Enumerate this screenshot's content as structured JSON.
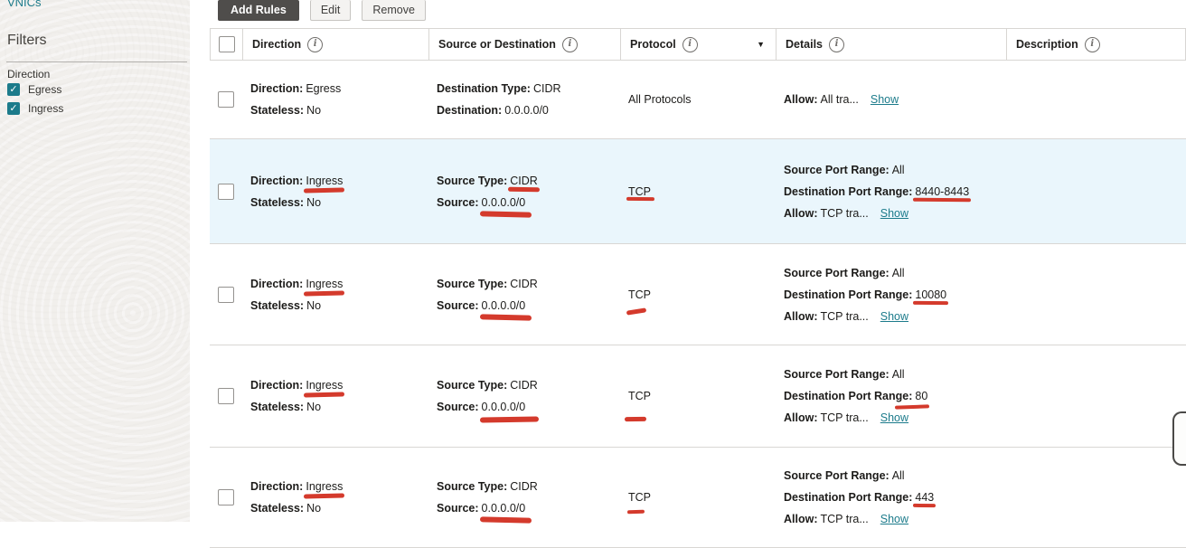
{
  "icons": {
    "info": "i",
    "caret_down": "▼",
    "check": "✓"
  },
  "colors": {
    "accent_teal": "#1c7b8b",
    "annotation_red": "#d43a2c",
    "row_highlight": "#eaf6fc",
    "add_rules_button": "#4f4d4b"
  },
  "sidebar": {
    "nav_item": "VNICs",
    "filters_title": "Filters",
    "direction_label": "Direction",
    "options": [
      {
        "label": "Egress",
        "checked": true
      },
      {
        "label": "Ingress",
        "checked": true
      }
    ]
  },
  "toolbar": {
    "add_rules": "Add Rules",
    "edit": "Edit",
    "remove": "Remove"
  },
  "table": {
    "columns": [
      "Direction",
      "Source or Destination",
      "Protocol",
      "Details",
      "Description"
    ],
    "rows": [
      {
        "direction_label": "Direction:",
        "direction": "Egress",
        "stateless_label": "Stateless:",
        "stateless": "No",
        "type_label": "Destination Type:",
        "type_value": "CIDR",
        "addr_label": "Destination:",
        "addr": "0.0.0.0/0",
        "protocol": "All Protocols",
        "allow_label": "Allow:",
        "allow_text": "All tra...",
        "show_link": "Show"
      },
      {
        "direction_label": "Direction:",
        "direction": "Ingress",
        "stateless_label": "Stateless:",
        "stateless": "No",
        "type_label": "Source Type:",
        "type_value": "CIDR",
        "addr_label": "Source:",
        "addr": "0.0.0.0/0",
        "protocol": "TCP",
        "source_port_label": "Source Port Range:",
        "source_port": "All",
        "dest_port_label": "Destination Port Range:",
        "dest_port": "8440-8443",
        "allow_label": "Allow:",
        "allow_text": "TCP tra...",
        "show_link": "Show"
      },
      {
        "direction_label": "Direction:",
        "direction": "Ingress",
        "stateless_label": "Stateless:",
        "stateless": "No",
        "type_label": "Source Type:",
        "type_value": "CIDR",
        "addr_label": "Source:",
        "addr": "0.0.0.0/0",
        "protocol": "TCP",
        "source_port_label": "Source Port Range:",
        "source_port": "All",
        "dest_port_label": "Destination Port Range:",
        "dest_port": "10080",
        "allow_label": "Allow:",
        "allow_text": "TCP tra...",
        "show_link": "Show"
      },
      {
        "direction_label": "Direction:",
        "direction": "Ingress",
        "stateless_label": "Stateless:",
        "stateless": "No",
        "type_label": "Source Type:",
        "type_value": "CIDR",
        "addr_label": "Source:",
        "addr": "0.0.0.0/0",
        "protocol": "TCP",
        "source_port_label": "Source Port Range:",
        "source_port": "All",
        "dest_port_label": "Destination Port Range:",
        "dest_port": "80",
        "allow_label": "Allow:",
        "allow_text": "TCP tra...",
        "show_link": "Show"
      },
      {
        "direction_label": "Direction:",
        "direction": "Ingress",
        "stateless_label": "Stateless:",
        "stateless": "No",
        "type_label": "Source Type:",
        "type_value": "CIDR",
        "addr_label": "Source:",
        "addr": "0.0.0.0/0",
        "protocol": "TCP",
        "source_port_label": "Source Port Range:",
        "source_port": "All",
        "dest_port_label": "Destination Port Range:",
        "dest_port": "443",
        "allow_label": "Allow:",
        "allow_text": "TCP tra...",
        "show_link": "Show"
      }
    ]
  }
}
